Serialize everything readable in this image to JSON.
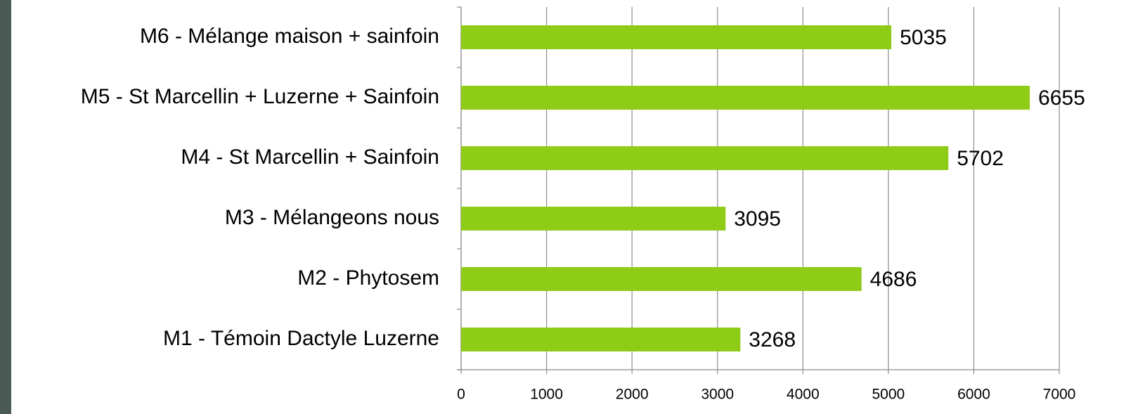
{
  "chart_data": {
    "type": "barh",
    "categories": [
      "M1 - Témoin Dactyle Luzerne",
      "M2 - Phytosem",
      "M3 - Mélangeons nous",
      "M4 - St Marcellin + Sainfoin",
      "M5 - St Marcellin + Luzerne + Sainfoin",
      "M6 - Mélange maison + sainfoin"
    ],
    "values": [
      3268,
      4686,
      3095,
      5702,
      6655,
      5035
    ],
    "color": "#8fcc17",
    "xlim": [
      0,
      7000
    ],
    "xticks": [
      0,
      1000,
      2000,
      3000,
      4000,
      5000,
      6000,
      7000
    ],
    "grid": true
  }
}
